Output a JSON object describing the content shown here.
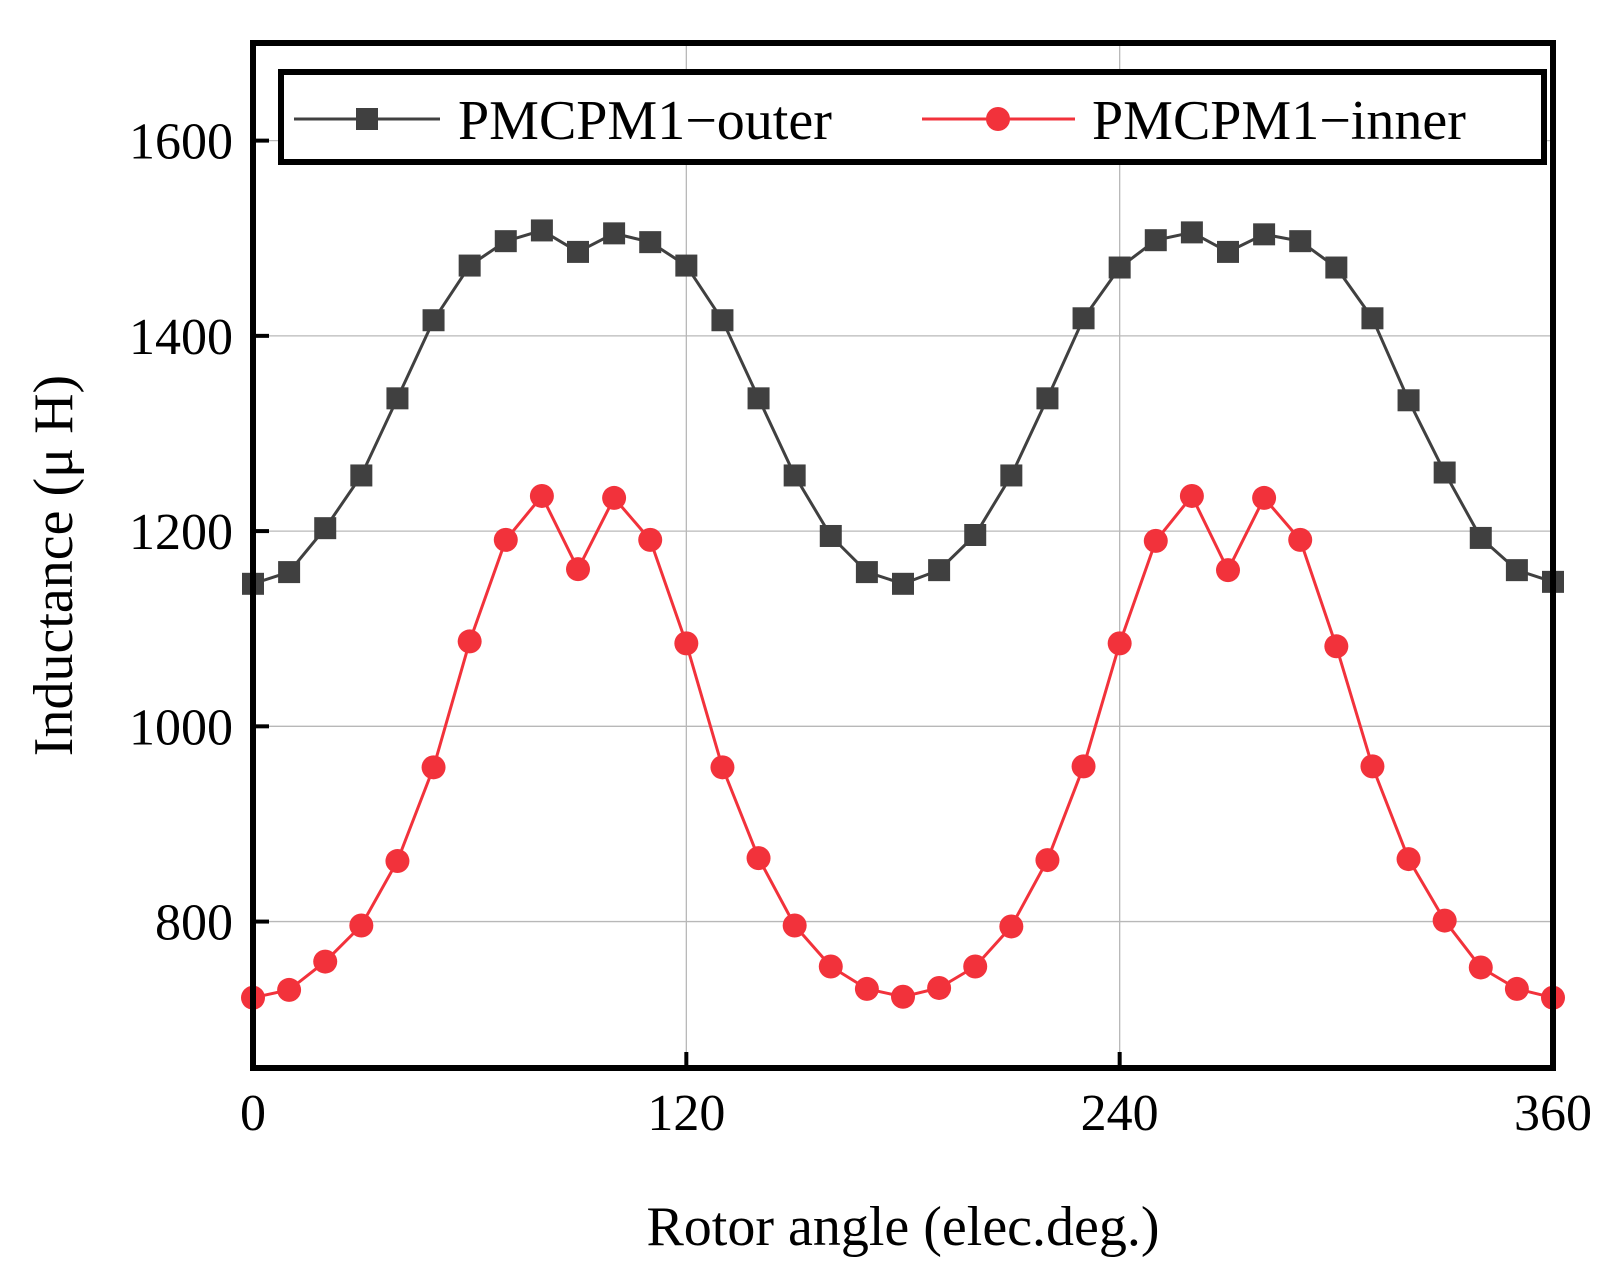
{
  "chart_data": {
    "type": "line",
    "title": "",
    "xlabel": "Rotor angle (elec.deg.)",
    "ylabel": "Inductance (μ H)",
    "xlim": [
      0,
      360
    ],
    "ylim": [
      650,
      1700
    ],
    "xticks": [
      0,
      120,
      240,
      360
    ],
    "yticks": [
      800,
      1000,
      1200,
      1400,
      1600
    ],
    "grid": true,
    "legend_position": "top",
    "x": [
      0,
      10,
      20,
      30,
      40,
      50,
      60,
      70,
      80,
      90,
      100,
      110,
      120,
      130,
      140,
      150,
      160,
      170,
      180,
      190,
      200,
      210,
      220,
      230,
      240,
      250,
      260,
      270,
      280,
      290,
      300,
      310,
      320,
      330,
      340,
      350,
      360
    ],
    "series": [
      {
        "name": "PMCPM1−outer",
        "color": "#404040",
        "marker": "square",
        "values": [
          1146,
          1158,
          1203,
          1257,
          1336,
          1416,
          1472,
          1497,
          1508,
          1486,
          1505,
          1496,
          1472,
          1416,
          1336,
          1257,
          1195,
          1158,
          1146,
          1160,
          1196,
          1257,
          1336,
          1418,
          1470,
          1498,
          1506,
          1486,
          1504,
          1497,
          1470,
          1418,
          1334,
          1260,
          1193,
          1160,
          1148
        ]
      },
      {
        "name": "PMCPM1−inner",
        "color": "#f2323b",
        "marker": "circle",
        "values": [
          722,
          730,
          759,
          796,
          862,
          958,
          1087,
          1191,
          1236,
          1161,
          1234,
          1191,
          1085,
          958,
          865,
          796,
          754,
          731,
          723,
          732,
          754,
          795,
          863,
          959,
          1085,
          1190,
          1236,
          1160,
          1234,
          1191,
          1082,
          959,
          864,
          801,
          753,
          731,
          722
        ]
      }
    ]
  }
}
